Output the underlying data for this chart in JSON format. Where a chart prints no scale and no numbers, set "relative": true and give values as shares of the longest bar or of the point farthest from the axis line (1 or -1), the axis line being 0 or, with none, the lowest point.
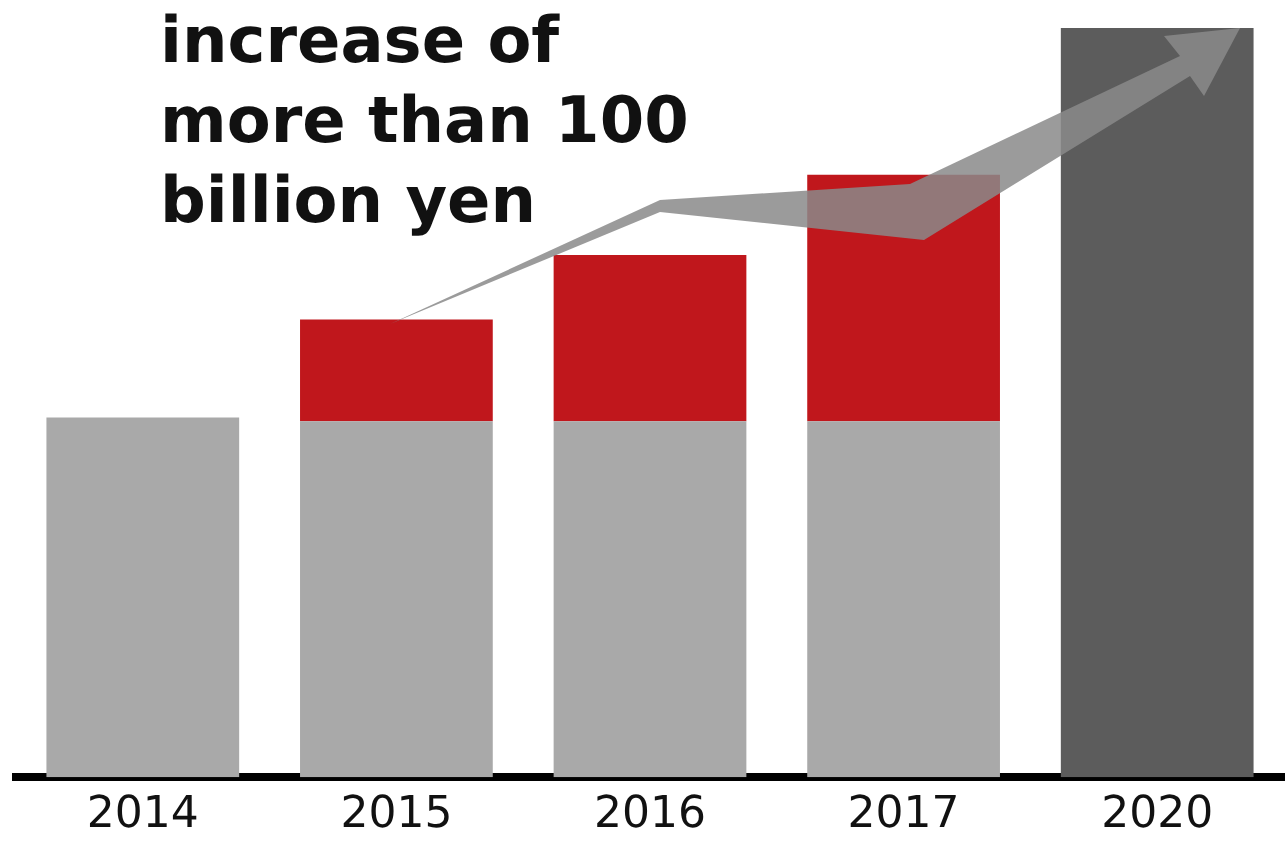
{
  "chart_data": {
    "type": "bar",
    "relative": true,
    "stacked": true,
    "grid": false,
    "legend": false,
    "categories": [
      "2014",
      "2015",
      "2016",
      "2017",
      "2020"
    ],
    "series": [
      {
        "color": "#a9a9a9",
        "values": [
          0.48,
          0.475,
          0.475,
          0.475,
          null
        ]
      },
      {
        "color": "#c0171c",
        "values": [
          null,
          0.136,
          0.222,
          0.329,
          null
        ]
      },
      {
        "color": "#5c5c5c",
        "values": [
          null,
          null,
          null,
          null,
          1
        ]
      }
    ],
    "annotations": [
      "increase of\nmore than 100\nbillion yen"
    ]
  }
}
